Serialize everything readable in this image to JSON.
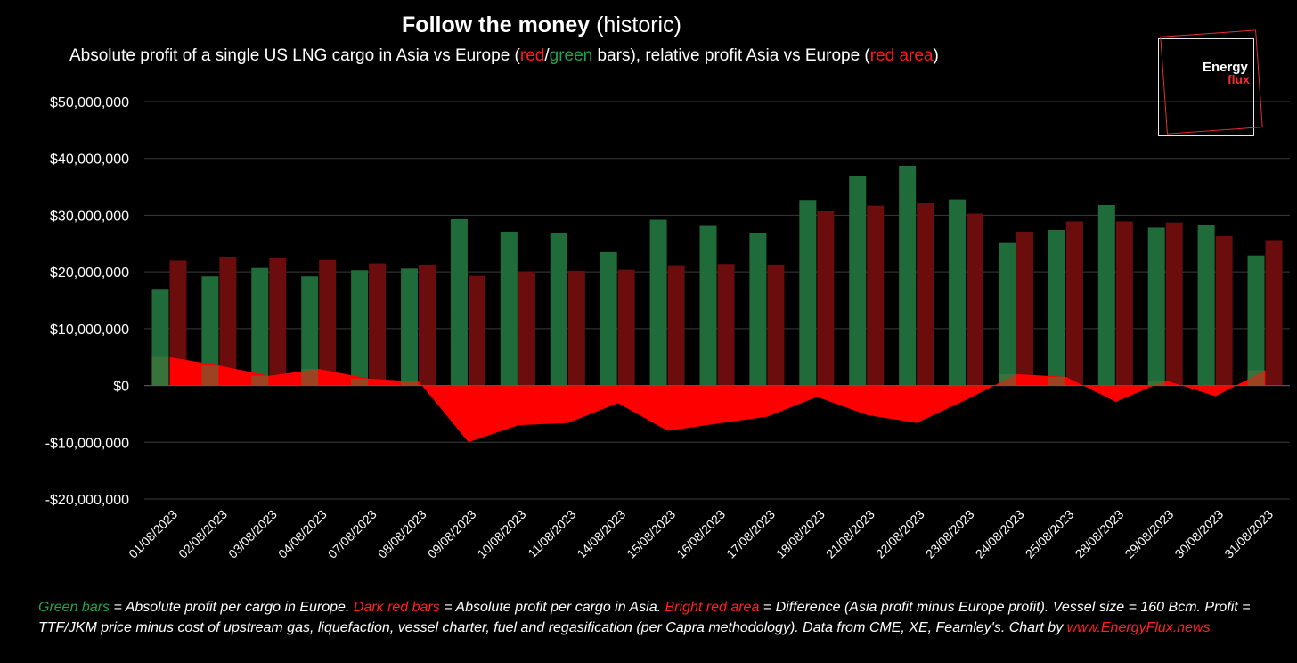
{
  "title": {
    "bold": "Follow the money",
    "rest": " (historic)"
  },
  "subtitle": {
    "p1": "Absolute profit of a single US LNG cargo in Asia vs Europe (",
    "red": "red",
    "slash": "/",
    "green": "green",
    "p2": " bars), relative profit Asia vs Europe (",
    "red_area": "red area",
    "p3": ")"
  },
  "logo": {
    "line1": "Energy",
    "line2": "flux"
  },
  "colors": {
    "europe": "#1f6b3a",
    "asia": "#6b0d0d",
    "difference": "#ff0000",
    "grid": "#3a3a3a"
  },
  "footnote": {
    "g1": "Green bars",
    "t1": " = Absolute profit per cargo in Europe. ",
    "r1": "Dark red bars",
    "t2": " = Absolute profit per cargo in Asia. ",
    "r2": "Bright red area",
    "t3": " = Difference (Asia profit minus Europe profit). Vessel size = 160 Bcm. Profit = TTF/JKM price minus cost of upstream gas, liquefaction, vessel charter, fuel and regasification (per Capra methodology). Data from CME, XE, Fearnley's. Chart by ",
    "link": "www.EnergyFlux.news"
  },
  "chart_data": {
    "type": "bar",
    "categories": [
      "01/08/2023",
      "02/08/2023",
      "03/08/2023",
      "04/08/2023",
      "07/08/2023",
      "08/08/2023",
      "09/08/2023",
      "10/08/2023",
      "11/08/2023",
      "14/08/2023",
      "15/08/2023",
      "16/08/2023",
      "17/08/2023",
      "18/08/2023",
      "21/08/2023",
      "22/08/2023",
      "23/08/2023",
      "24/08/2023",
      "25/08/2023",
      "28/08/2023",
      "29/08/2023",
      "30/08/2023",
      "31/08/2023"
    ],
    "series": [
      {
        "type": "bar",
        "values": [
          17000000,
          19200000,
          20700000,
          19200000,
          20300000,
          20600000,
          29300000,
          27100000,
          26800000,
          23500000,
          29200000,
          28100000,
          26800000,
          32700000,
          36900000,
          38700000,
          32800000,
          25100000,
          27400000,
          31800000,
          27800000,
          28200000,
          22900000
        ]
      },
      {
        "type": "bar",
        "values": [
          22000000,
          22700000,
          22400000,
          22100000,
          21500000,
          21300000,
          19300000,
          20100000,
          20200000,
          20400000,
          21200000,
          21400000,
          21300000,
          30700000,
          31700000,
          32100000,
          30300000,
          27100000,
          28900000,
          28900000,
          28700000,
          26300000,
          25600000
        ]
      },
      {
        "type": "area",
        "values": [
          5000000,
          3500000,
          1700000,
          2900000,
          1200000,
          700000,
          -10000000,
          -7000000,
          -6600000,
          -3100000,
          -8000000,
          -6700000,
          -5500000,
          -2000000,
          -5200000,
          -6600000,
          -2500000,
          2000000,
          1500000,
          -2900000,
          900000,
          -1900000,
          2700000
        ]
      }
    ],
    "ylim": [
      -20000000,
      50000000
    ],
    "yticks": [
      50000000,
      40000000,
      30000000,
      20000000,
      10000000,
      0,
      -10000000,
      -20000000
    ],
    "ytick_labels": [
      "$50,000,000",
      "$40,000,000",
      "$30,000,000",
      "$20,000,000",
      "$10,000,000",
      "$0",
      "-$10,000,000",
      "-$20,000,000"
    ],
    "grid": true,
    "legend": "none"
  }
}
